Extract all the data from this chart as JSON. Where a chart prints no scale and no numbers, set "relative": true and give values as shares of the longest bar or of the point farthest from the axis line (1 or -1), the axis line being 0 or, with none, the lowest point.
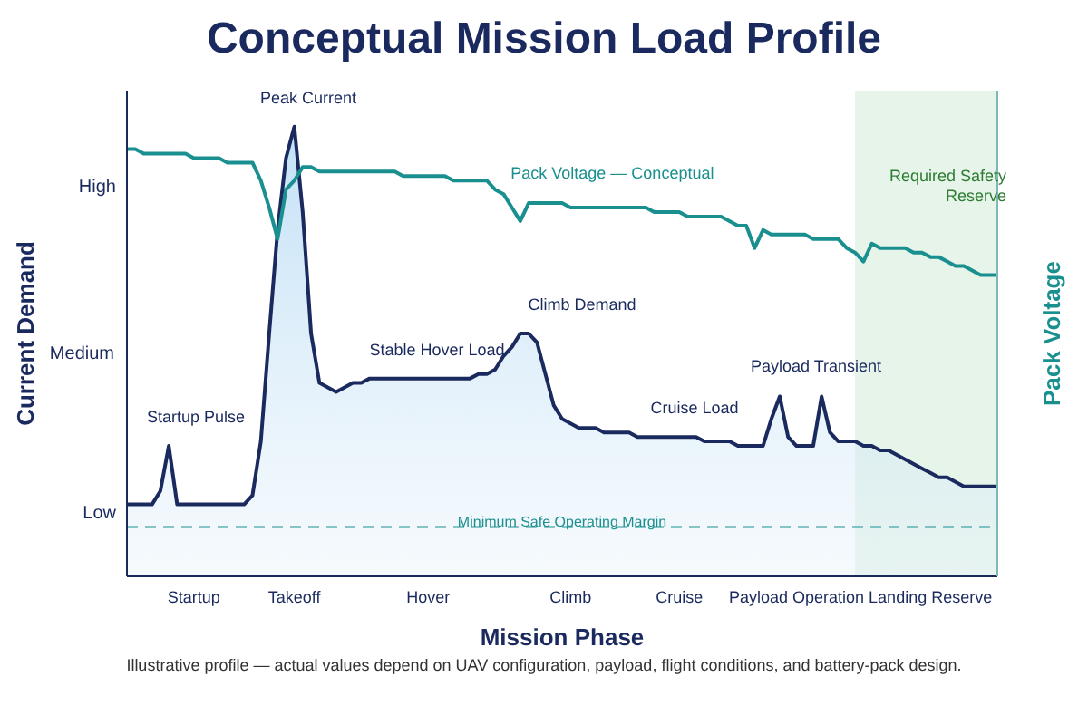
{
  "chart_data": {
    "type": "area",
    "title": "Conceptual Mission Load Profile",
    "xlabel": "Mission Phase",
    "ylabel": "Current Demand",
    "y2label": "Pack Voltage",
    "relative": true,
    "categories": [
      null,
      null,
      null,
      null,
      null,
      null,
      null,
      null,
      "Startup",
      null,
      null,
      null,
      null,
      null,
      null,
      null,
      null,
      null,
      null,
      null,
      "Takeoff",
      null,
      null,
      null,
      null,
      null,
      null,
      null,
      null,
      null,
      null,
      null,
      null,
      null,
      null,
      null,
      "Hover",
      null,
      null,
      null,
      null,
      null,
      null,
      null,
      null,
      null,
      null,
      null,
      null,
      null,
      null,
      null,
      null,
      "Climb",
      null,
      null,
      null,
      null,
      null,
      null,
      null,
      null,
      null,
      null,
      null,
      null,
      "Cruise",
      null,
      null,
      null,
      null,
      null,
      null,
      null,
      null,
      null,
      null,
      null,
      null,
      null,
      "Payload Operation",
      null,
      null,
      null,
      null,
      null,
      null,
      null,
      null,
      null,
      null,
      null,
      null,
      null,
      null,
      null,
      "Landing Reserve",
      null,
      null,
      null,
      null,
      null,
      null,
      null,
      null
    ],
    "grid": false,
    "legend": false,
    "marker": "none",
    "series": [
      {
        "color": "#1b2a5e",
        "values": [
          0.16,
          0.16,
          0.16,
          0.16,
          0.19,
          0.29,
          0.16,
          0.16,
          0.16,
          0.16,
          0.16,
          0.16,
          0.16,
          0.16,
          0.16,
          0.18,
          0.3,
          0.54,
          0.77,
          0.93,
          1,
          0.81,
          0.54,
          0.43,
          0.42,
          0.41,
          0.42,
          0.43,
          0.43,
          0.44,
          0.44,
          0.44,
          0.44,
          0.44,
          0.44,
          0.44,
          0.44,
          0.44,
          0.44,
          0.44,
          0.44,
          0.44,
          0.45,
          0.45,
          0.46,
          0.49,
          0.51,
          0.54,
          0.54,
          0.52,
          0.45,
          0.38,
          0.35,
          0.34,
          0.33,
          0.33,
          0.33,
          0.32,
          0.32,
          0.32,
          0.32,
          0.31,
          0.31,
          0.31,
          0.31,
          0.31,
          0.31,
          0.31,
          0.31,
          0.3,
          0.3,
          0.3,
          0.3,
          0.29,
          0.29,
          0.29,
          0.29,
          0.35,
          0.4,
          0.31,
          0.29,
          0.29,
          0.29,
          0.4,
          0.32,
          0.3,
          0.3,
          0.3,
          0.29,
          0.29,
          0.28,
          0.28,
          0.27,
          0.26,
          0.25,
          0.24,
          0.23,
          0.22,
          0.22,
          0.21,
          0.2,
          0.2,
          0.2,
          0.2,
          0.2
        ]
      },
      {
        "type": "line",
        "name": "Pack Voltage — Conceptual",
        "color": "#1a8f8f",
        "values": [
          0.95,
          0.95,
          0.94,
          0.94,
          0.94,
          0.94,
          0.94,
          0.94,
          0.93,
          0.93,
          0.93,
          0.93,
          0.92,
          0.92,
          0.92,
          0.92,
          0.88,
          0.82,
          0.75,
          0.86,
          0.88,
          0.91,
          0.91,
          0.9,
          0.9,
          0.9,
          0.9,
          0.9,
          0.9,
          0.9,
          0.9,
          0.9,
          0.9,
          0.89,
          0.89,
          0.89,
          0.89,
          0.89,
          0.89,
          0.88,
          0.88,
          0.88,
          0.88,
          0.88,
          0.86,
          0.85,
          0.82,
          0.79,
          0.83,
          0.83,
          0.83,
          0.83,
          0.83,
          0.82,
          0.82,
          0.82,
          0.82,
          0.82,
          0.82,
          0.82,
          0.82,
          0.82,
          0.82,
          0.81,
          0.81,
          0.81,
          0.81,
          0.8,
          0.8,
          0.8,
          0.8,
          0.8,
          0.79,
          0.78,
          0.78,
          0.73,
          0.77,
          0.76,
          0.76,
          0.76,
          0.76,
          0.76,
          0.75,
          0.75,
          0.75,
          0.75,
          0.73,
          0.72,
          0.7,
          0.74,
          0.73,
          0.73,
          0.73,
          0.73,
          0.72,
          0.72,
          0.71,
          0.71,
          0.7,
          0.69,
          0.69,
          0.68,
          0.67,
          0.67,
          0.67
        ]
      }
    ],
    "ref_lines": [
      {
        "axis": "y",
        "value": 0.11,
        "label": "Minimum Safe Operating Margin",
        "color": "#1a8f8f",
        "line_style": "dashed"
      }
    ],
    "annotations": [
      "Low",
      "Medium",
      "High",
      "Startup Pulse",
      "Peak Current",
      "Stable Hover Load",
      "Climb Demand",
      "Cruise Load",
      "Payload Transient",
      "Required Safety Reserve",
      "Illustrative profile — actual values depend on UAV configuration, payload, flight conditions, and battery-pack design."
    ]
  }
}
